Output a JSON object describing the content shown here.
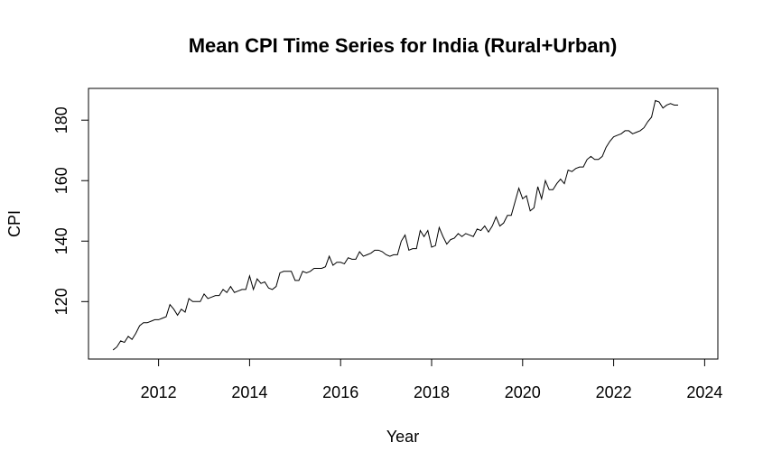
{
  "chart_data": {
    "type": "line",
    "title": "Mean CPI Time Series for India (Rural+Urban)",
    "xlabel": "Year",
    "ylabel": "CPI",
    "xlim": [
      2010.46,
      2024.29
    ],
    "ylim": [
      101.0,
      190.5
    ],
    "x_ticks": [
      2012,
      2014,
      2016,
      2018,
      2020,
      2022,
      2024
    ],
    "y_ticks": [
      120,
      140,
      160,
      180
    ],
    "grid": false,
    "legend": "none",
    "line_color": "#000000",
    "series": [
      {
        "x_start": 2011.0,
        "x_step": 0.083333,
        "values": [
          104.0,
          105.0,
          107.0,
          106.5,
          108.5,
          107.5,
          109.5,
          112.0,
          113.0,
          113.0,
          113.5,
          114.0,
          114.0,
          114.5,
          115.0,
          119.0,
          117.5,
          115.5,
          117.5,
          116.5,
          121.0,
          120.0,
          120.0,
          120.0,
          122.5,
          121.0,
          121.5,
          122.0,
          122.0,
          124.0,
          123.0,
          125.0,
          123.0,
          123.5,
          124.0,
          124.0,
          128.5,
          124.0,
          127.5,
          126.0,
          126.5,
          124.5,
          124.0,
          125.0,
          129.5,
          130.0,
          130.0,
          130.0,
          127.0,
          127.0,
          130.0,
          129.5,
          130.0,
          131.0,
          131.0,
          131.0,
          131.5,
          135.0,
          132.0,
          133.0,
          133.0,
          132.5,
          134.5,
          134.0,
          134.0,
          136.5,
          135.0,
          135.5,
          136.0,
          137.0,
          137.0,
          136.5,
          135.5,
          135.0,
          135.5,
          135.5,
          140.0,
          142.0,
          137.0,
          137.5,
          137.5,
          143.5,
          141.5,
          143.5,
          138.0,
          138.5,
          144.5,
          141.5,
          139.0,
          140.5,
          141.0,
          142.5,
          141.5,
          142.5,
          142.0,
          141.5,
          144.0,
          143.5,
          145.0,
          143.0,
          145.0,
          148.0,
          145.0,
          146.0,
          148.5,
          148.5,
          153.0,
          157.5,
          154.0,
          155.0,
          150.0,
          151.0,
          158.0,
          154.0,
          160.0,
          157.0,
          157.0,
          159.0,
          160.5,
          159.0,
          163.5,
          163.0,
          164.0,
          164.5,
          164.5,
          167.0,
          168.0,
          167.0,
          167.0,
          168.0,
          171.0,
          173.0,
          174.5,
          175.0,
          175.5,
          176.5,
          176.5,
          175.5,
          176.0,
          176.5,
          177.5,
          179.5,
          181.0,
          186.5,
          186.0,
          184.0,
          185.0,
          185.5,
          185.0,
          185.0
        ]
      }
    ]
  }
}
